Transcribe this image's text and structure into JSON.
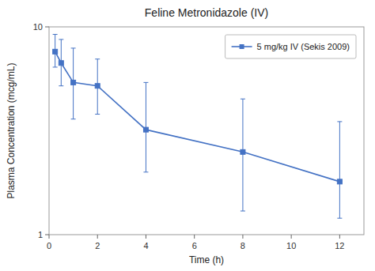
{
  "chart_data": {
    "type": "line",
    "title": "Feline Metronidazole (IV)",
    "xlabel": "Time (h)",
    "ylabel": "Plasma Concentration (mcg/mL)",
    "x": [
      0.25,
      0.5,
      1.0,
      2.0,
      4.0,
      8.0,
      12.0
    ],
    "series": [
      {
        "name": "5 mg/kg IV (Sekis 2009)",
        "color": "#4472C4",
        "marker": "square",
        "line_style": "solid",
        "values": [
          7.6,
          6.7,
          5.4,
          5.2,
          3.2,
          2.5,
          1.8
        ],
        "error_upper": [
          1.6,
          2.0,
          2.5,
          1.8,
          2.2,
          2.0,
          1.7
        ],
        "error_lower": [
          1.2,
          1.5,
          1.8,
          1.4,
          1.2,
          1.2,
          0.6
        ]
      }
    ],
    "log": "y",
    "xlim": [
      0,
      13
    ],
    "ylim": [
      1,
      10
    ],
    "xticks": [
      0,
      2,
      4,
      6,
      8,
      10,
      12
    ],
    "yticks": [
      1,
      10
    ],
    "grid": false,
    "legend": "upper right"
  }
}
